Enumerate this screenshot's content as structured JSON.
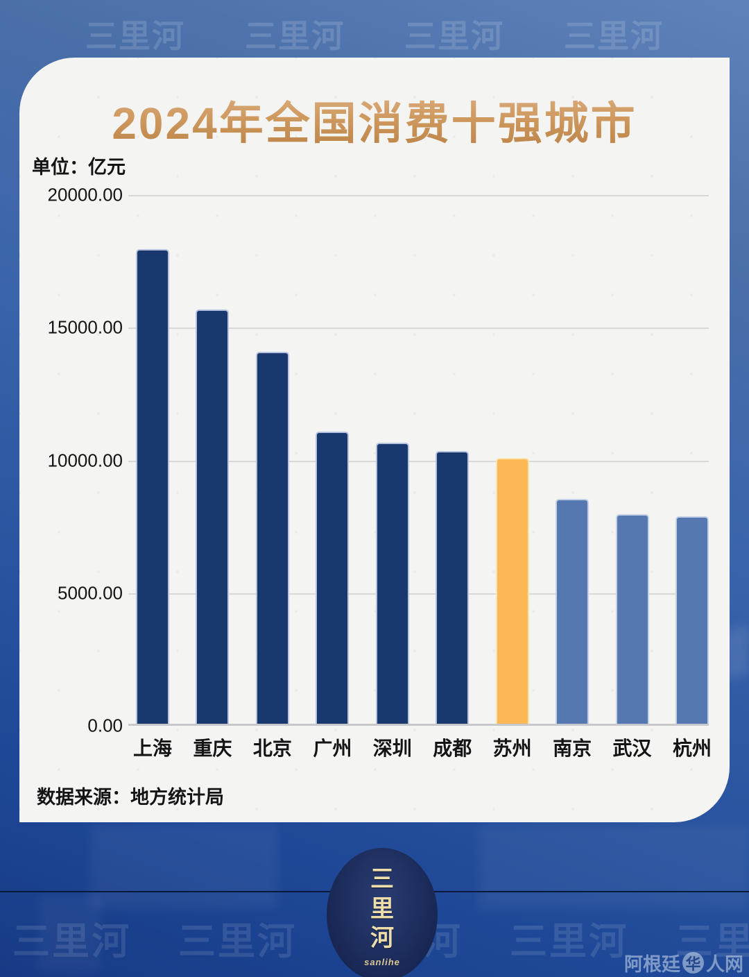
{
  "page": {
    "title": "2024年全国消费十强城市",
    "unit_label": "单位：亿元",
    "source_note": "数据来源：地方统计局"
  },
  "watermarks": {
    "text": "三里河",
    "top_count": 4,
    "bottom_count": 5
  },
  "logo": {
    "name": "三里河",
    "chars": [
      "三",
      "里",
      "河"
    ],
    "latin": "sanlihe"
  },
  "site_credit": {
    "prefix": "阿根廷",
    "icon_char": "华",
    "suffix": "人网"
  },
  "colors": {
    "bar_primary": "#19386e",
    "bar_primary_border": "#b7c2dc",
    "bar_highlight": "#fbb855",
    "bar_highlight_border": "#fde3af",
    "bar_light": "#5578b0",
    "bar_light_border": "#c3d0e6",
    "title_gold_light": "#ddb185",
    "title_gold_dark": "#ba8144",
    "background_blue_top": "#5f82ba",
    "background_blue_bottom": "#173a85",
    "card_background": "#efefee",
    "gridline": "#d9d9d9"
  },
  "chart_data": {
    "type": "bar",
    "title": "2024年全国消费十强城市",
    "unit": "亿元",
    "categories": [
      "上海",
      "重庆",
      "北京",
      "广州",
      "深圳",
      "成都",
      "苏州",
      "南京",
      "武汉",
      "杭州"
    ],
    "values": [
      17890,
      15620,
      14000,
      11000,
      10580,
      10270,
      10010,
      8460,
      7890,
      7810
    ],
    "bar_styles": [
      "primary",
      "primary",
      "primary",
      "primary",
      "primary",
      "primary",
      "highlight",
      "light",
      "light",
      "light"
    ],
    "ylim": [
      0,
      20000
    ],
    "yticks": [
      {
        "value": 20000,
        "label": "20000.00"
      },
      {
        "value": 15000,
        "label": "15000.00"
      },
      {
        "value": 10000,
        "label": "10000.00"
      },
      {
        "value": 5000,
        "label": "5000.00"
      },
      {
        "value": 0,
        "label": "0.00"
      }
    ],
    "grid": true,
    "legend": false,
    "highlight_category": "苏州"
  }
}
